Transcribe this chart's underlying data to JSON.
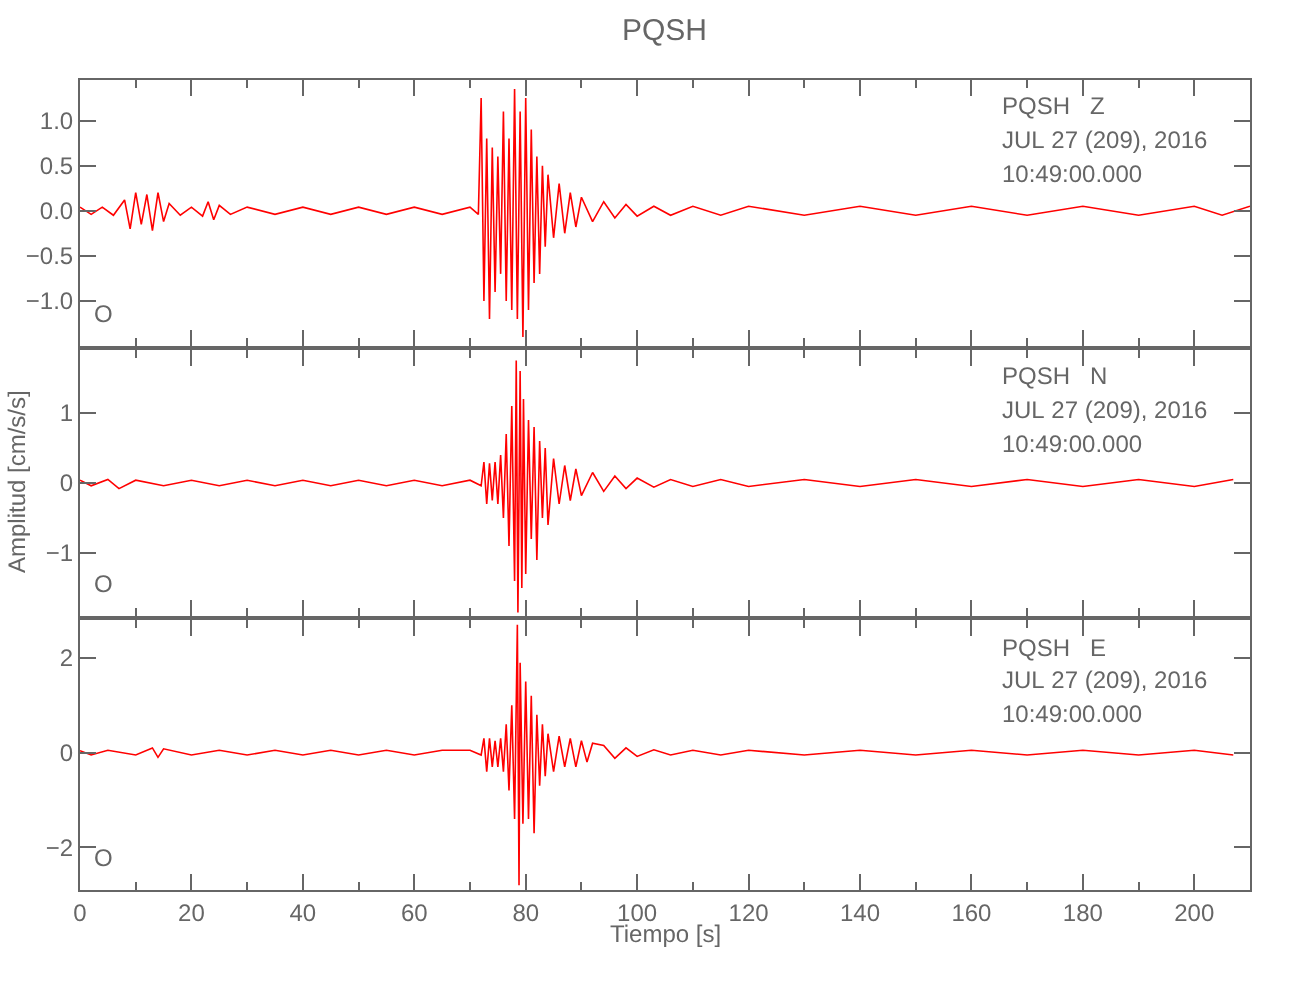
{
  "chart_data": [
    {
      "type": "line",
      "title": "PQSH",
      "annotations": [
        "PQSH   Z",
        "JUL 27 (209), 2016",
        "10:49:00.000",
        "O"
      ],
      "color": "#ff0000",
      "x": [
        0,
        2,
        4,
        6,
        8,
        9,
        10,
        11,
        12,
        13,
        14,
        15,
        16,
        18,
        20,
        22,
        23,
        24,
        25,
        27,
        30,
        35,
        40,
        45,
        50,
        55,
        60,
        65,
        70,
        71.5,
        72,
        72.5,
        73,
        73.5,
        74,
        74.5,
        75,
        75.5,
        76,
        76.5,
        77,
        77.5,
        78,
        78.5,
        79,
        79.5,
        80,
        80.5,
        81,
        81.5,
        82,
        82.5,
        83,
        83.5,
        84,
        85,
        86,
        87,
        88,
        89,
        90,
        92,
        94,
        96,
        98,
        100,
        103,
        106,
        110,
        115,
        120,
        130,
        140,
        150,
        160,
        170,
        180,
        190,
        200,
        205,
        210
      ],
      "values": [
        0.04,
        -0.04,
        0.04,
        -0.05,
        0.12,
        -0.2,
        0.2,
        -0.15,
        0.18,
        -0.22,
        0.2,
        -0.12,
        0.08,
        -0.05,
        0.04,
        -0.06,
        0.1,
        -0.1,
        0.06,
        -0.04,
        0.04,
        -0.04,
        0.04,
        -0.04,
        0.04,
        -0.04,
        0.04,
        -0.04,
        0.04,
        -0.04,
        1.25,
        -1.0,
        0.8,
        -1.2,
        0.7,
        -0.9,
        0.6,
        -0.7,
        1.1,
        -1.0,
        0.8,
        -1.1,
        1.35,
        -1.2,
        1.1,
        -1.4,
        1.25,
        -1.1,
        0.9,
        -0.8,
        0.6,
        -0.7,
        0.5,
        -0.4,
        0.4,
        -0.3,
        0.3,
        -0.25,
        0.2,
        -0.18,
        0.15,
        -0.12,
        0.1,
        -0.08,
        0.07,
        -0.06,
        0.05,
        -0.05,
        0.05,
        -0.05,
        0.05,
        -0.05,
        0.05,
        -0.05,
        0.05,
        -0.05,
        0.05,
        -0.05,
        0.05,
        -0.05,
        0.05
      ],
      "xlim": [
        0,
        210
      ],
      "xticks": [
        0,
        20,
        40,
        60,
        80,
        100,
        120,
        140,
        160,
        180,
        200
      ],
      "ylim": [
        -1.5,
        1.45
      ],
      "yticks": [
        {
          "value": -1,
          "label": "−1.0"
        },
        {
          "value": -0.5,
          "label": "−0.5"
        },
        {
          "value": 0,
          "label": "0.0"
        },
        {
          "value": 0.5,
          "label": "0.5"
        },
        {
          "value": 1,
          "label": "1.0"
        }
      ],
      "tick_labels": "y"
    },
    {
      "type": "line",
      "ylabel": "Amplitud [cm/s/s]",
      "annotations": [
        "PQSH   N",
        "JUL 27 (209), 2016",
        "10:49:00.000",
        "O"
      ],
      "color": "#ff0000",
      "x": [
        0,
        2,
        5,
        7,
        10,
        15,
        20,
        25,
        30,
        35,
        40,
        45,
        50,
        55,
        60,
        65,
        70,
        72,
        72.5,
        73,
        73.5,
        74,
        74.5,
        75,
        75.5,
        76,
        76.5,
        77,
        77.5,
        78,
        78.3,
        78.6,
        79,
        79.3,
        79.6,
        80,
        80.5,
        81,
        81.5,
        82,
        82.5,
        83,
        83.5,
        84,
        85,
        86,
        87,
        88,
        89,
        90,
        92,
        94,
        96,
        98,
        100,
        103,
        106,
        110,
        115,
        120,
        130,
        140,
        150,
        160,
        170,
        180,
        190,
        200,
        207
      ],
      "values": [
        0.04,
        -0.04,
        0.05,
        -0.08,
        0.04,
        -0.04,
        0.04,
        -0.04,
        0.04,
        -0.04,
        0.04,
        -0.04,
        0.04,
        -0.04,
        0.04,
        -0.04,
        0.04,
        -0.04,
        0.3,
        -0.3,
        0.28,
        -0.25,
        0.3,
        -0.3,
        0.4,
        -0.5,
        0.7,
        -0.9,
        1.1,
        -1.4,
        1.75,
        -1.85,
        1.6,
        -1.5,
        1.2,
        -1.3,
        0.9,
        -0.8,
        0.8,
        -1.1,
        0.6,
        -0.5,
        0.5,
        -0.6,
        0.35,
        -0.3,
        0.25,
        -0.25,
        0.2,
        -0.18,
        0.15,
        -0.12,
        0.1,
        -0.08,
        0.07,
        -0.06,
        0.05,
        -0.05,
        0.05,
        -0.05,
        0.05,
        -0.05,
        0.05,
        -0.05,
        0.05,
        -0.05,
        0.05,
        -0.05,
        0.05
      ],
      "xlim": [
        0,
        210
      ],
      "xticks": [
        0,
        20,
        40,
        60,
        80,
        100,
        120,
        140,
        160,
        180,
        200
      ],
      "ylim": [
        -1.9,
        1.9
      ],
      "yticks": [
        {
          "value": -1,
          "label": "−1"
        },
        0,
        1
      ],
      "tick_labels": "y"
    },
    {
      "type": "line",
      "xlabel": "Tiempo [s]",
      "annotations": [
        "PQSH   E",
        "JUL 27 (209), 2016",
        "10:49:00.000",
        "O"
      ],
      "color": "#ff0000",
      "x": [
        0,
        2,
        5,
        10,
        13,
        14,
        15,
        20,
        25,
        30,
        35,
        40,
        45,
        50,
        55,
        60,
        65,
        70,
        72,
        72.5,
        73,
        73.5,
        74,
        74.5,
        75,
        75.5,
        76,
        76.5,
        77,
        77.5,
        78,
        78.5,
        78.8,
        79,
        79.5,
        80,
        80.5,
        81,
        81.5,
        82,
        82.5,
        83,
        83.5,
        84,
        85,
        86,
        87,
        88,
        89,
        90,
        91,
        92,
        94,
        96,
        98,
        100,
        103,
        106,
        110,
        115,
        120,
        130,
        140,
        150,
        160,
        170,
        180,
        190,
        200,
        207
      ],
      "values": [
        0.04,
        -0.05,
        0.05,
        -0.05,
        0.1,
        -0.1,
        0.08,
        -0.05,
        0.05,
        -0.05,
        0.05,
        -0.05,
        0.05,
        -0.05,
        0.05,
        -0.05,
        0.05,
        0.05,
        -0.05,
        0.3,
        -0.4,
        0.3,
        -0.3,
        0.25,
        -0.3,
        0.3,
        -0.4,
        0.6,
        -0.8,
        1.0,
        -1.4,
        2.7,
        -2.8,
        1.9,
        -1.5,
        1.5,
        -1.4,
        1.2,
        -1.7,
        0.8,
        -0.7,
        0.6,
        -0.5,
        0.4,
        -0.4,
        0.35,
        -0.3,
        0.3,
        -0.3,
        0.25,
        -0.2,
        0.2,
        0.15,
        -0.12,
        0.1,
        -0.08,
        0.06,
        -0.05,
        0.05,
        -0.05,
        0.05,
        -0.05,
        0.05,
        -0.05,
        0.05,
        -0.05,
        0.05,
        -0.05,
        0.05,
        -0.05
      ],
      "xlim": [
        0,
        210
      ],
      "xticks": [
        0,
        20,
        40,
        60,
        80,
        100,
        120,
        140,
        160,
        180,
        200
      ],
      "ylim": [
        -2.9,
        2.8
      ],
      "yticks": [
        {
          "value": -2,
          "label": "−2"
        },
        0,
        2
      ]
    }
  ]
}
